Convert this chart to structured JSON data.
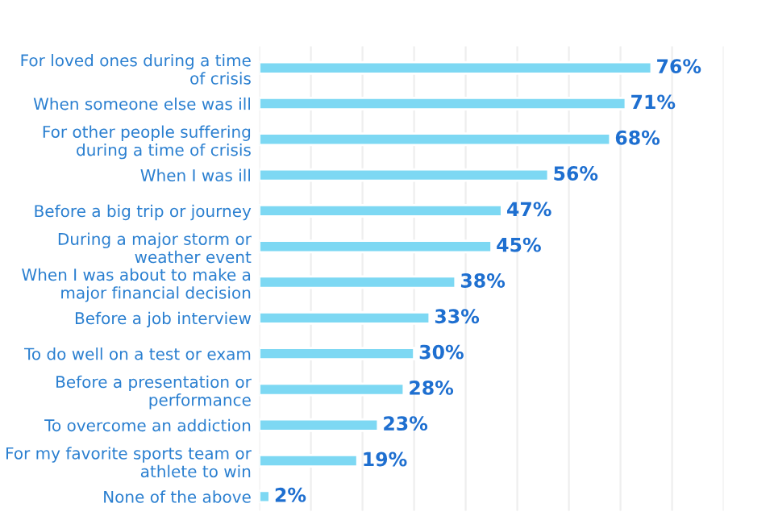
{
  "chart_data": {
    "type": "bar",
    "orientation": "horizontal",
    "categories": [
      "For loved ones during a time of crisis",
      "When someone else was ill",
      "For other people suffering during a time of crisis",
      "When I was ill",
      "Before a big trip or journey",
      "During a major storm or weather event",
      "When I was about to make a major financial decision",
      "Before a job interview",
      "To do well on a test or exam",
      "Before a presentation or performance",
      "To overcome an addiction",
      "For my favorite sports team or athlete to win",
      "None of the above"
    ],
    "values": [
      76,
      71,
      68,
      56,
      47,
      45,
      38,
      33,
      30,
      28,
      23,
      19,
      2
    ],
    "value_labels": [
      "76%",
      "71%",
      "68%",
      "56%",
      "47%",
      "45%",
      "38%",
      "33%",
      "30%",
      "28%",
      "23%",
      "19%",
      "2%"
    ],
    "color": "#7dd8f3",
    "xlim": [
      0,
      90
    ],
    "xticks": [
      {
        "value": 0,
        "label": null
      },
      {
        "value": 10,
        "label": null
      },
      {
        "value": 20,
        "label": null
      },
      {
        "value": 30,
        "label": null
      },
      {
        "value": 40,
        "label": null
      },
      {
        "value": 50,
        "label": null
      },
      {
        "value": 60,
        "label": null
      },
      {
        "value": 70,
        "label": null
      },
      {
        "value": 80,
        "label": null
      },
      {
        "value": 90,
        "label": null
      }
    ],
    "grid": "x",
    "tick_labels": "y"
  }
}
